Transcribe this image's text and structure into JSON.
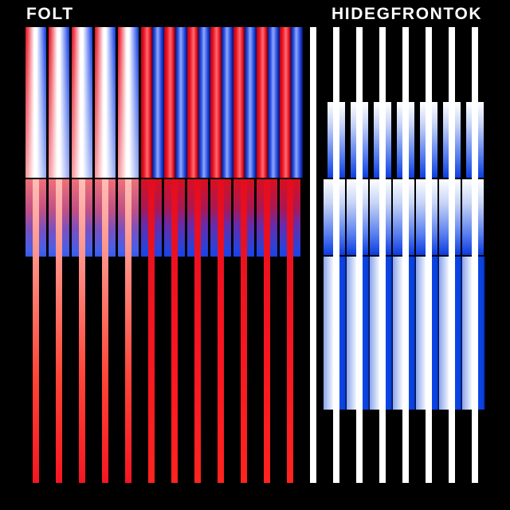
{
  "background_color": "#000000",
  "left_panel": {
    "title": "FOLT",
    "bar_count": 12,
    "pastel_bar_count": 5,
    "stripe_bar_count": 7,
    "line_count": 12,
    "colors": {
      "red": "#e00d20",
      "white": "#ffffff",
      "blue": "#2b50e8",
      "deep_blue": "#031070",
      "purple_mid": "#6b2aa8",
      "line_red": "#f71521",
      "line_salmon": "#ffbdb6"
    }
  },
  "right_panel": {
    "title": "HIDEGFRONTOK",
    "line_count": 8,
    "band1_bar_count": 7,
    "band2_bar_count": 7,
    "band3_cell_count": 7,
    "colors": {
      "white": "#ffffff",
      "blue": "#0b46e8",
      "light_blue": "#8aa4ea",
      "dark_blue": "#041155"
    }
  }
}
